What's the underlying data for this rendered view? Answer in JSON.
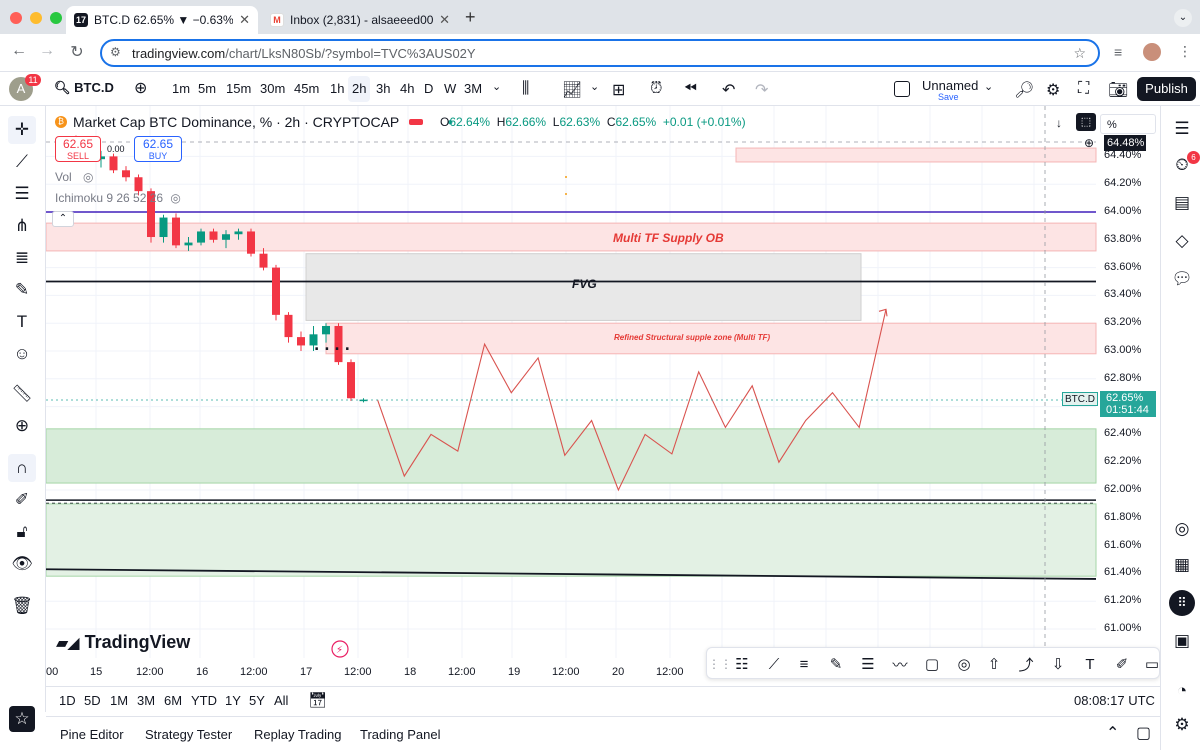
{
  "browser": {
    "tabs": [
      {
        "title": "BTC.D 62.65% ▼ −0.63% Un",
        "active": true,
        "icon": "tradingview-icon"
      },
      {
        "title": "Inbox (2,831) - alsaeeed00@",
        "active": false,
        "icon": "gmail-icon"
      }
    ],
    "new_tab_label": "+",
    "url_domain": "tradingview.com",
    "url_path": "/chart/LksN80Sb/?symbol=TVC%3AUS02Y"
  },
  "toolbar": {
    "avatar_letter": "A",
    "avatar_badge": "11",
    "symbol": "BTC.D",
    "timeframes": [
      "1m",
      "5m",
      "15m",
      "30m",
      "45m",
      "1h",
      "2h",
      "3h",
      "4h",
      "D",
      "W",
      "3M"
    ],
    "selected_timeframe": "2h",
    "layout_name": "Unnamed",
    "layout_save": "Save",
    "publish_label": "Publish"
  },
  "legend": {
    "title": "Market Cap BTC Dominance, % · 2h · CRYPTOCAP",
    "o_label": "O",
    "o": "62.64%",
    "h_label": "H",
    "h": "62.66%",
    "l_label": "L",
    "l": "62.63%",
    "c_label": "C",
    "c": "62.65%",
    "change": "+0.01 (+0.01%)",
    "sell_price": "62.65",
    "sell_label": "SELL",
    "buy_price": "62.65",
    "buy_label": "BUY",
    "spread": "0.00",
    "vol_label": "Vol",
    "ichimoku_label": "Ichimoku 9 26 52 26"
  },
  "price_axis": {
    "labels": [
      "64.40%",
      "64.20%",
      "64.00%",
      "63.80%",
      "63.60%",
      "63.40%",
      "63.20%",
      "63.00%",
      "62.80%",
      "62.40%",
      "62.20%",
      "62.00%",
      "61.80%",
      "61.60%",
      "61.40%",
      "61.20%",
      "61.00%"
    ],
    "crosshair_price": "64.48%",
    "current_price": "62.65%",
    "countdown": "01:51:44",
    "symbol_tag": "BTC.D",
    "scale_mode": "%"
  },
  "time_axis": {
    "labels": [
      "00",
      "15",
      "12:00",
      "16",
      "12:00",
      "17",
      "12:00",
      "18",
      "12:00",
      "19",
      "12:00",
      "20",
      "12:00"
    ]
  },
  "annotations": {
    "supply_ob": "Multi TF Supply OB",
    "fvg": "FVG",
    "refined_zone": "Refined Structural supple zone (Multi TF)"
  },
  "brand": "TradingView",
  "range_buttons": [
    "1D",
    "5D",
    "1M",
    "3M",
    "6M",
    "YTD",
    "1Y",
    "5Y",
    "All"
  ],
  "clock": "08:08:17 UTC",
  "bottom_tabs": [
    "Pine Editor",
    "Strategy Tester",
    "Replay Trading",
    "Trading Panel"
  ],
  "right_badge": "6",
  "colors": {
    "bull": "#089981",
    "bear": "#f23645",
    "supply_zone": "#fde4e4",
    "demand_zone": "#d7ecd9",
    "fvg_zone": "#e8e8e8",
    "accent": "#2962ff"
  },
  "chart_data": {
    "type": "candlestick",
    "symbol": "BTC.D",
    "timeframe": "2h",
    "candles": [
      {
        "o": 64.5,
        "h": 64.55,
        "l": 64.45,
        "c": 64.48
      },
      {
        "o": 64.48,
        "h": 64.52,
        "l": 64.36,
        "c": 64.38
      },
      {
        "o": 64.38,
        "h": 64.44,
        "l": 64.32,
        "c": 64.4
      },
      {
        "o": 64.4,
        "h": 64.42,
        "l": 64.28,
        "c": 64.3
      },
      {
        "o": 64.3,
        "h": 64.33,
        "l": 64.22,
        "c": 64.25
      },
      {
        "o": 64.25,
        "h": 64.27,
        "l": 64.12,
        "c": 64.15
      },
      {
        "o": 64.15,
        "h": 64.17,
        "l": 63.78,
        "c": 63.82
      },
      {
        "o": 63.82,
        "h": 63.98,
        "l": 63.78,
        "c": 63.96
      },
      {
        "o": 63.96,
        "h": 63.99,
        "l": 63.74,
        "c": 63.76
      },
      {
        "o": 63.76,
        "h": 63.82,
        "l": 63.72,
        "c": 63.78
      },
      {
        "o": 63.78,
        "h": 63.88,
        "l": 63.76,
        "c": 63.86
      },
      {
        "o": 63.86,
        "h": 63.88,
        "l": 63.78,
        "c": 63.8
      },
      {
        "o": 63.8,
        "h": 63.87,
        "l": 63.74,
        "c": 63.84
      },
      {
        "o": 63.84,
        "h": 63.88,
        "l": 63.8,
        "c": 63.86
      },
      {
        "o": 63.86,
        "h": 63.88,
        "l": 63.68,
        "c": 63.7
      },
      {
        "o": 63.7,
        "h": 63.74,
        "l": 63.58,
        "c": 63.6
      },
      {
        "o": 63.6,
        "h": 63.62,
        "l": 63.22,
        "c": 63.26
      },
      {
        "o": 63.26,
        "h": 63.28,
        "l": 63.06,
        "c": 63.1
      },
      {
        "o": 63.1,
        "h": 63.14,
        "l": 63.0,
        "c": 63.04
      },
      {
        "o": 63.04,
        "h": 63.18,
        "l": 63.0,
        "c": 63.12
      },
      {
        "o": 63.12,
        "h": 63.2,
        "l": 63.06,
        "c": 63.18
      },
      {
        "o": 63.18,
        "h": 63.2,
        "l": 62.9,
        "c": 62.92
      },
      {
        "o": 62.92,
        "h": 62.94,
        "l": 62.64,
        "c": 62.66
      },
      {
        "o": 62.64,
        "h": 62.66,
        "l": 62.63,
        "c": 62.65
      }
    ],
    "zones": [
      {
        "name": "supply_ob",
        "from": 63.72,
        "to": 63.92,
        "color": "#fde4e4"
      },
      {
        "name": "fvg",
        "from": 63.22,
        "to": 63.7,
        "color": "#e8e8e8"
      },
      {
        "name": "refined_zone",
        "from": 62.98,
        "to": 63.2,
        "color": "#fde4e4"
      },
      {
        "name": "demand_upper",
        "from": 62.05,
        "to": 62.44,
        "color": "#d7ecd9"
      },
      {
        "name": "demand_lower",
        "from": 61.38,
        "to": 61.9,
        "color": "#e3f1e4"
      }
    ],
    "horizontal_lines": [
      {
        "price": 64.0,
        "color": "#5b3fc4"
      },
      {
        "price": 63.5,
        "color": "#131722"
      },
      {
        "price": 61.92,
        "color": "#131722",
        "style": "dashed-double"
      }
    ],
    "trend_line": {
      "from": 61.43,
      "to": 61.36,
      "color": "#131722"
    },
    "projection_path": [
      62.65,
      62.1,
      62.4,
      62.28,
      63.05,
      62.7,
      62.95,
      62.25,
      62.5,
      62.0,
      62.4,
      62.26,
      62.85,
      62.45,
      62.75,
      62.2,
      62.5,
      62.7,
      62.45,
      63.3
    ],
    "y_range": [
      60.9,
      64.55
    ]
  }
}
